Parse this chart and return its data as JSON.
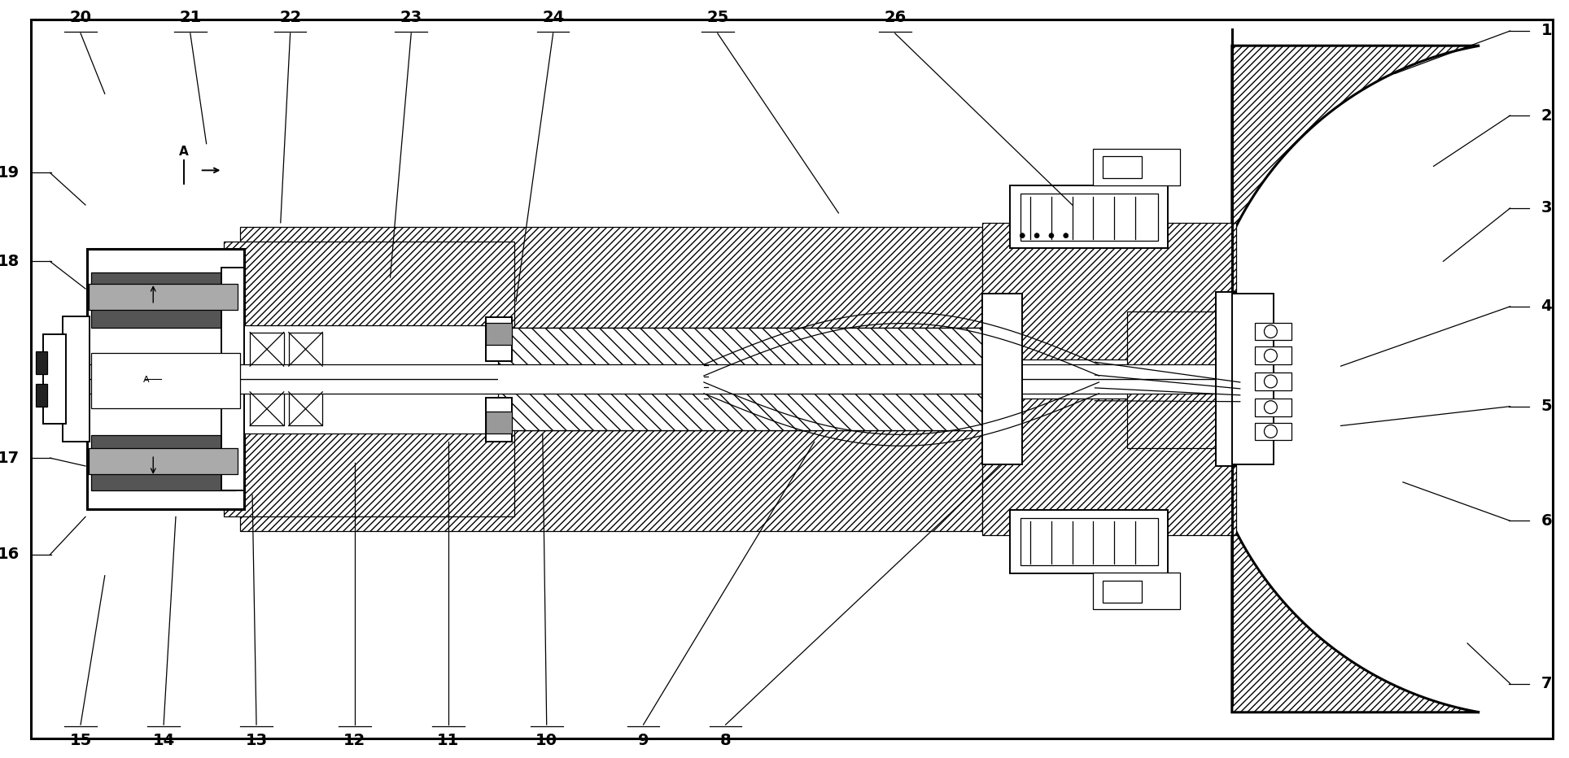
{
  "bg_color": "#ffffff",
  "line_color": "#000000",
  "figsize": [
    19.28,
    9.32
  ],
  "dpi": 100
}
